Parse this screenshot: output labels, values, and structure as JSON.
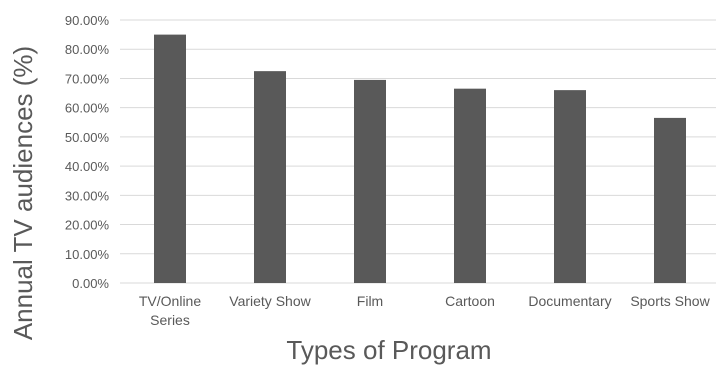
{
  "chart_data": {
    "type": "bar",
    "xlabel": "Types of Program",
    "ylabel": "Annual TV audiences (%)",
    "categories": [
      [
        "TV/Online",
        "Series"
      ],
      [
        "Variety Show"
      ],
      [
        "Film"
      ],
      [
        "Cartoon"
      ],
      [
        "Documentary"
      ],
      [
        "Sports Show"
      ]
    ],
    "values": [
      85.0,
      72.5,
      69.5,
      66.5,
      66.0,
      56.5
    ],
    "ylim": [
      0,
      90
    ],
    "ytick_step": 10,
    "ytick_labels": [
      "0.00%",
      "10.00%",
      "20.00%",
      "30.00%",
      "40.00%",
      "50.00%",
      "60.00%",
      "70.00%",
      "80.00%",
      "90.00%"
    ],
    "grid": true,
    "legend": false,
    "colors": {
      "bar": "#595959",
      "grid": "#d9d9d9",
      "text": "#595959"
    }
  }
}
